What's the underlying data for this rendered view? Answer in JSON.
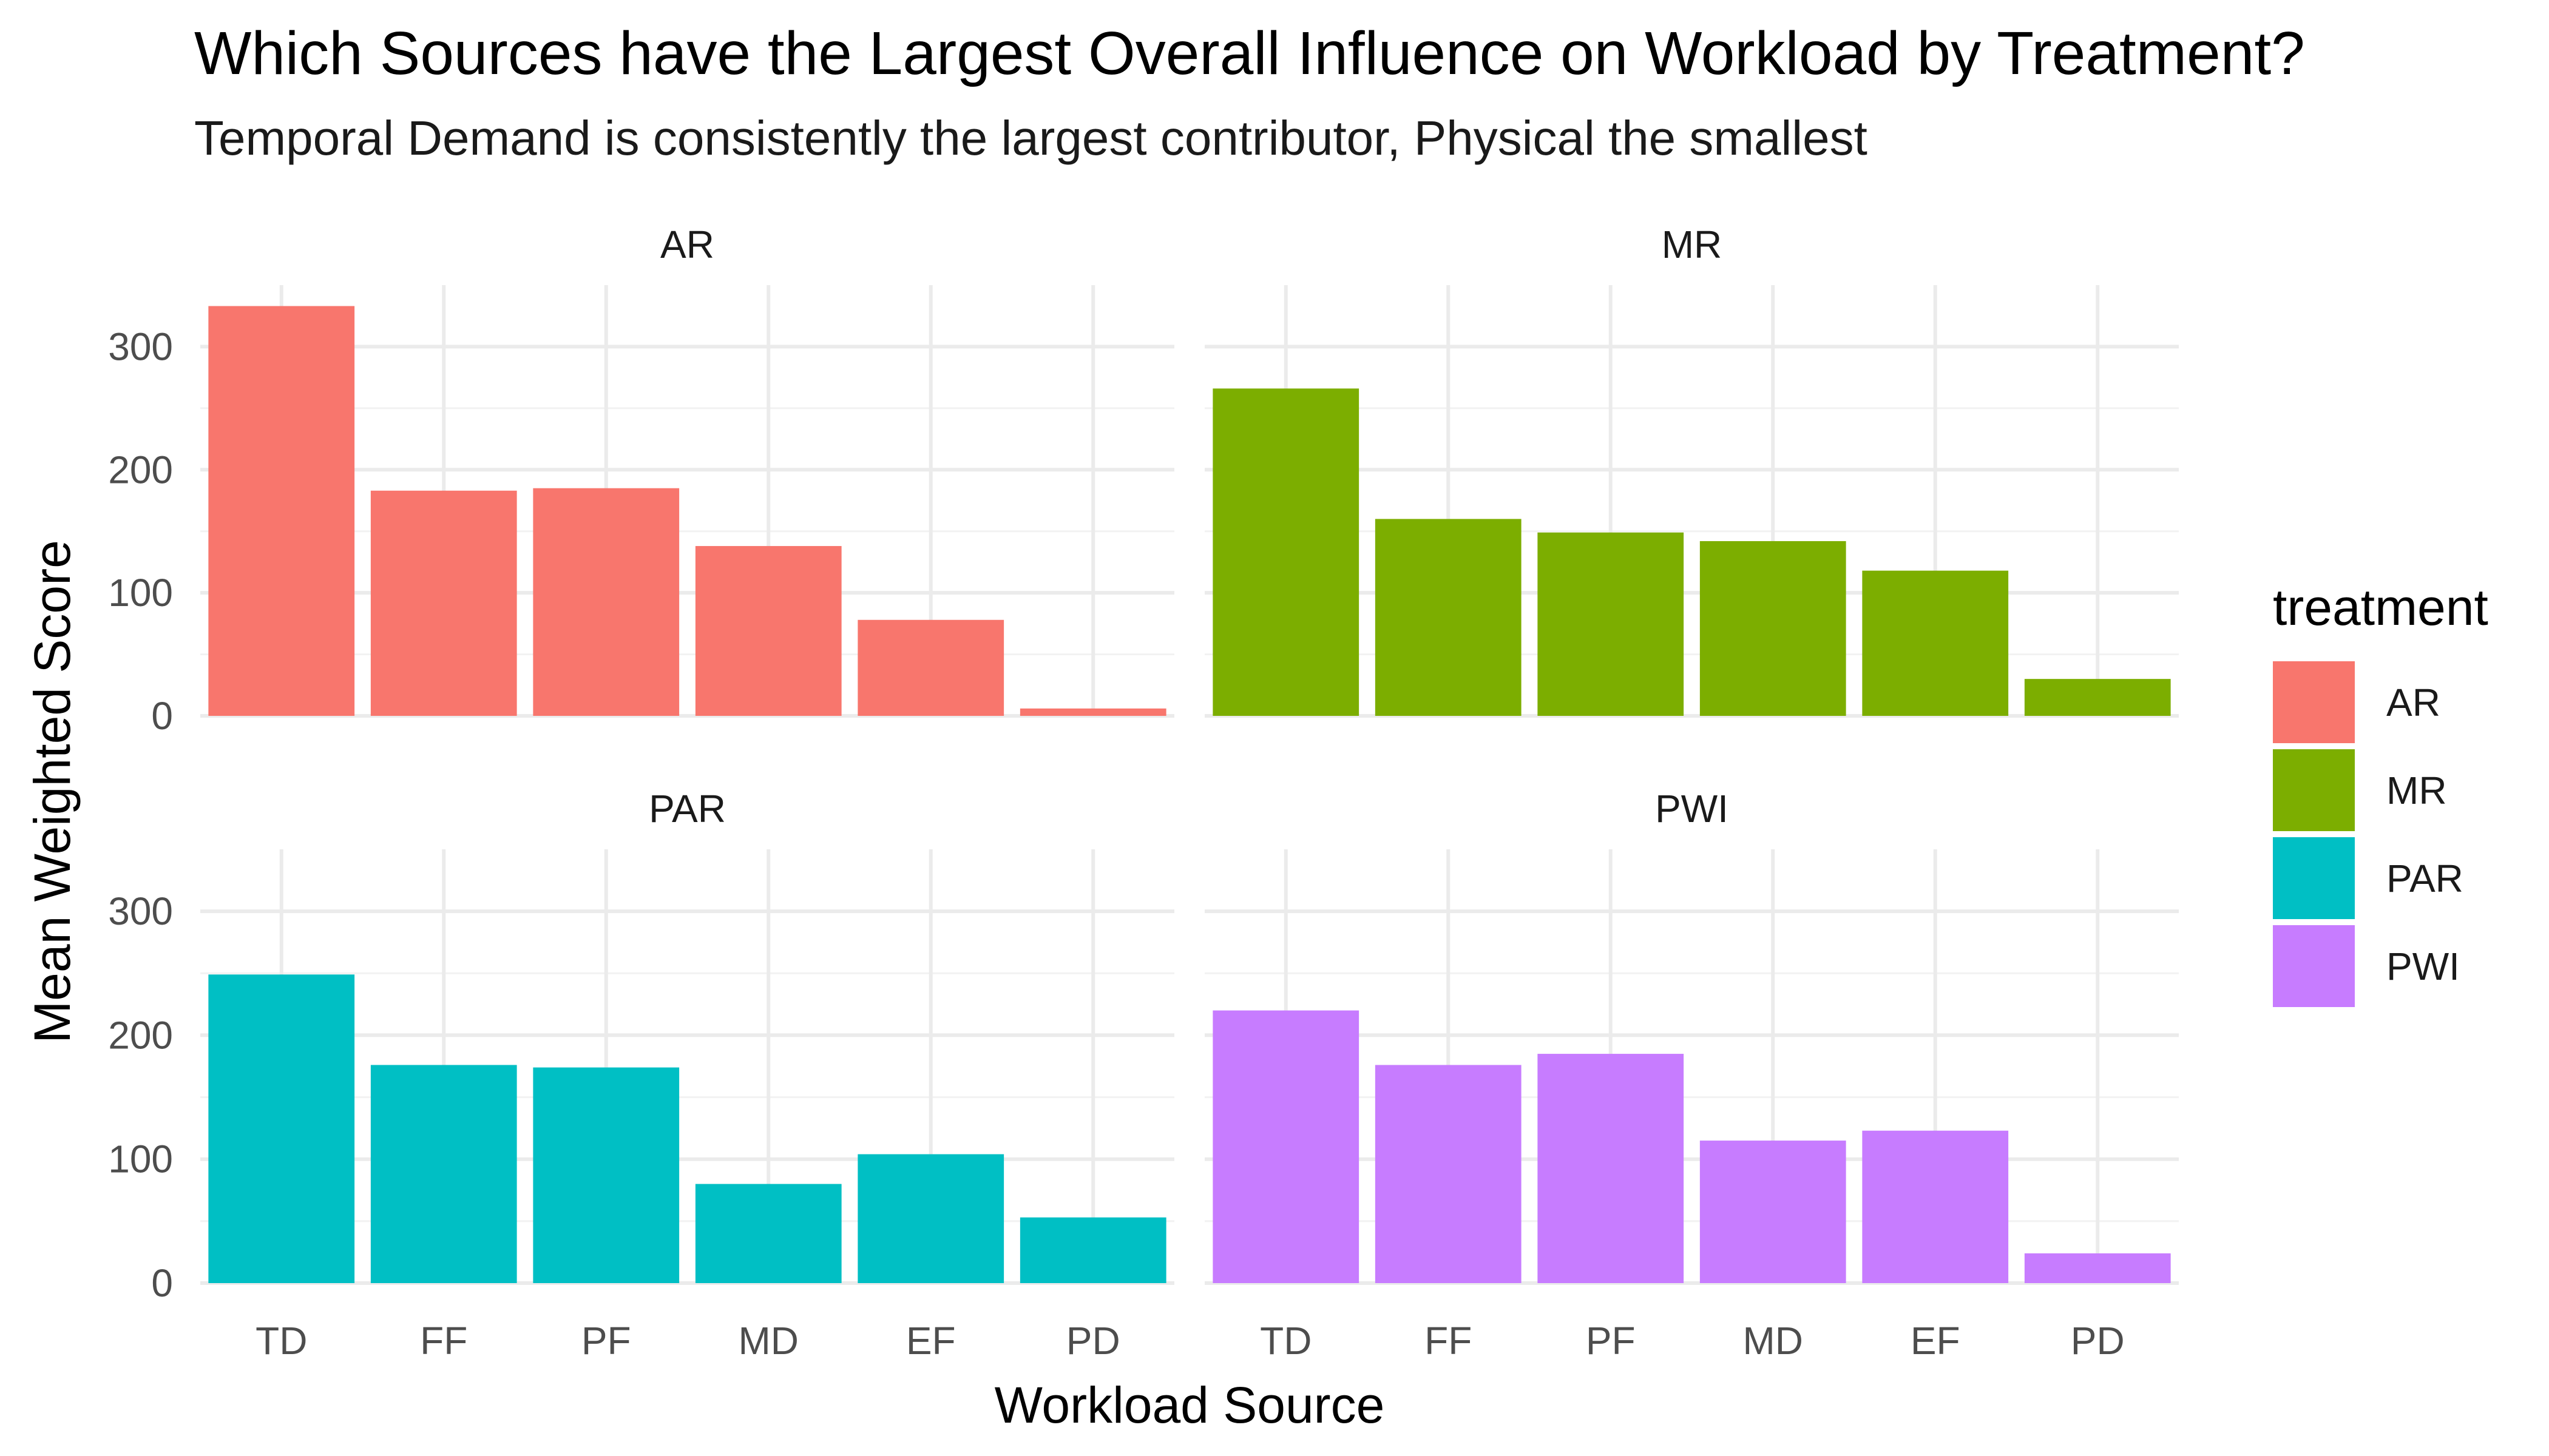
{
  "chart_data": {
    "type": "bar",
    "title": "Which Sources have the Largest Overall Influence on Workload by Treatment?",
    "subtitle": "Temporal Demand is consistently the largest contributor, Physical the smallest",
    "xlabel": "Workload Source",
    "ylabel": "Mean Weighted Score",
    "categories": [
      "TD",
      "FF",
      "PF",
      "MD",
      "EF",
      "PD"
    ],
    "yticks": [
      0,
      100,
      200,
      300
    ],
    "ylim": [
      0,
      350
    ],
    "grid": true,
    "legend": {
      "title": "treatment",
      "position": "right",
      "entries": [
        "AR",
        "MR",
        "PAR",
        "PWI"
      ]
    },
    "series": [
      {
        "name": "AR",
        "color": "#F8766D",
        "values": [
          333,
          183,
          185,
          138,
          78,
          6
        ]
      },
      {
        "name": "MR",
        "color": "#7CAE00",
        "values": [
          266,
          160,
          149,
          142,
          118,
          30
        ]
      },
      {
        "name": "PAR",
        "color": "#00BFC4",
        "values": [
          249,
          176,
          174,
          80,
          104,
          53
        ]
      },
      {
        "name": "PWI",
        "color": "#C77CFF",
        "values": [
          220,
          176,
          185,
          115,
          123,
          24
        ]
      }
    ]
  }
}
